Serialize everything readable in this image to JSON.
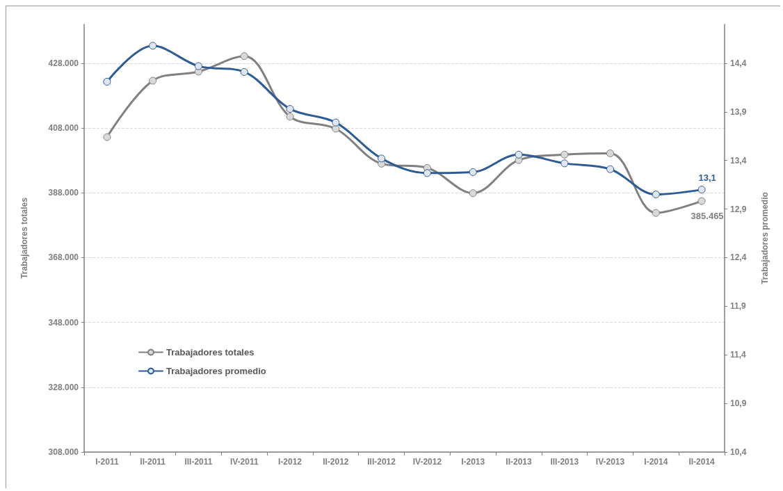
{
  "chart_data": {
    "type": "line",
    "categories": [
      "I-2011",
      "II-2011",
      "III-2011",
      "IV-2011",
      "I-2012",
      "II-2012",
      "III-2012",
      "IV-2012",
      "I-2013",
      "II-2013",
      "III-2013",
      "IV-2013",
      "I-2014",
      "II-2014"
    ],
    "series": [
      {
        "name": "Trabajadores totales",
        "color": "#808080",
        "values": [
          405200,
          422600,
          425400,
          430200,
          411500,
          407800,
          397000,
          395700,
          387900,
          398100,
          399800,
          400200,
          381800,
          385465
        ],
        "value_labels": [
          null,
          null,
          null,
          null,
          null,
          null,
          null,
          null,
          null,
          null,
          null,
          null,
          null,
          "385.465"
        ]
      },
      {
        "name": "Trabajadores promedio",
        "color": "#2e5b94",
        "axis": "y2",
        "values": [
          14.21,
          14.58,
          14.37,
          14.31,
          13.93,
          13.79,
          13.42,
          13.27,
          13.28,
          13.46,
          13.37,
          13.31,
          13.05,
          13.1
        ],
        "value_labels": [
          null,
          null,
          null,
          null,
          null,
          null,
          null,
          null,
          null,
          null,
          null,
          null,
          null,
          "13,1"
        ]
      }
    ],
    "ylabel": "Trabajadores totales",
    "y2label": "Trabajadores promedio",
    "ylim": [
      308000,
      440000
    ],
    "yticks": [
      {
        "value": 308000,
        "label": "308.000"
      },
      {
        "value": 328000,
        "label": "328.000"
      },
      {
        "value": 348000,
        "label": "348.000"
      },
      {
        "value": 368000,
        "label": "368.000"
      },
      {
        "value": 388000,
        "label": "388.000"
      },
      {
        "value": 408000,
        "label": "408.000"
      },
      {
        "value": 428000,
        "label": "428.000"
      }
    ],
    "y2lim": [
      10.4,
      14.8
    ],
    "y2ticks": [
      {
        "value": 10.4,
        "label": "10,4"
      },
      {
        "value": 10.9,
        "label": "10,9"
      },
      {
        "value": 11.4,
        "label": "11,4"
      },
      {
        "value": 11.9,
        "label": "11,9"
      },
      {
        "value": 12.4,
        "label": "12,4"
      },
      {
        "value": 12.9,
        "label": "12,9"
      },
      {
        "value": 13.4,
        "label": "13,4"
      },
      {
        "value": 13.9,
        "label": "13,9"
      },
      {
        "value": 14.4,
        "label": "14,4"
      }
    ],
    "grid": "y",
    "legend": "bottom left",
    "marker": "circle",
    "line_style": "solid"
  }
}
